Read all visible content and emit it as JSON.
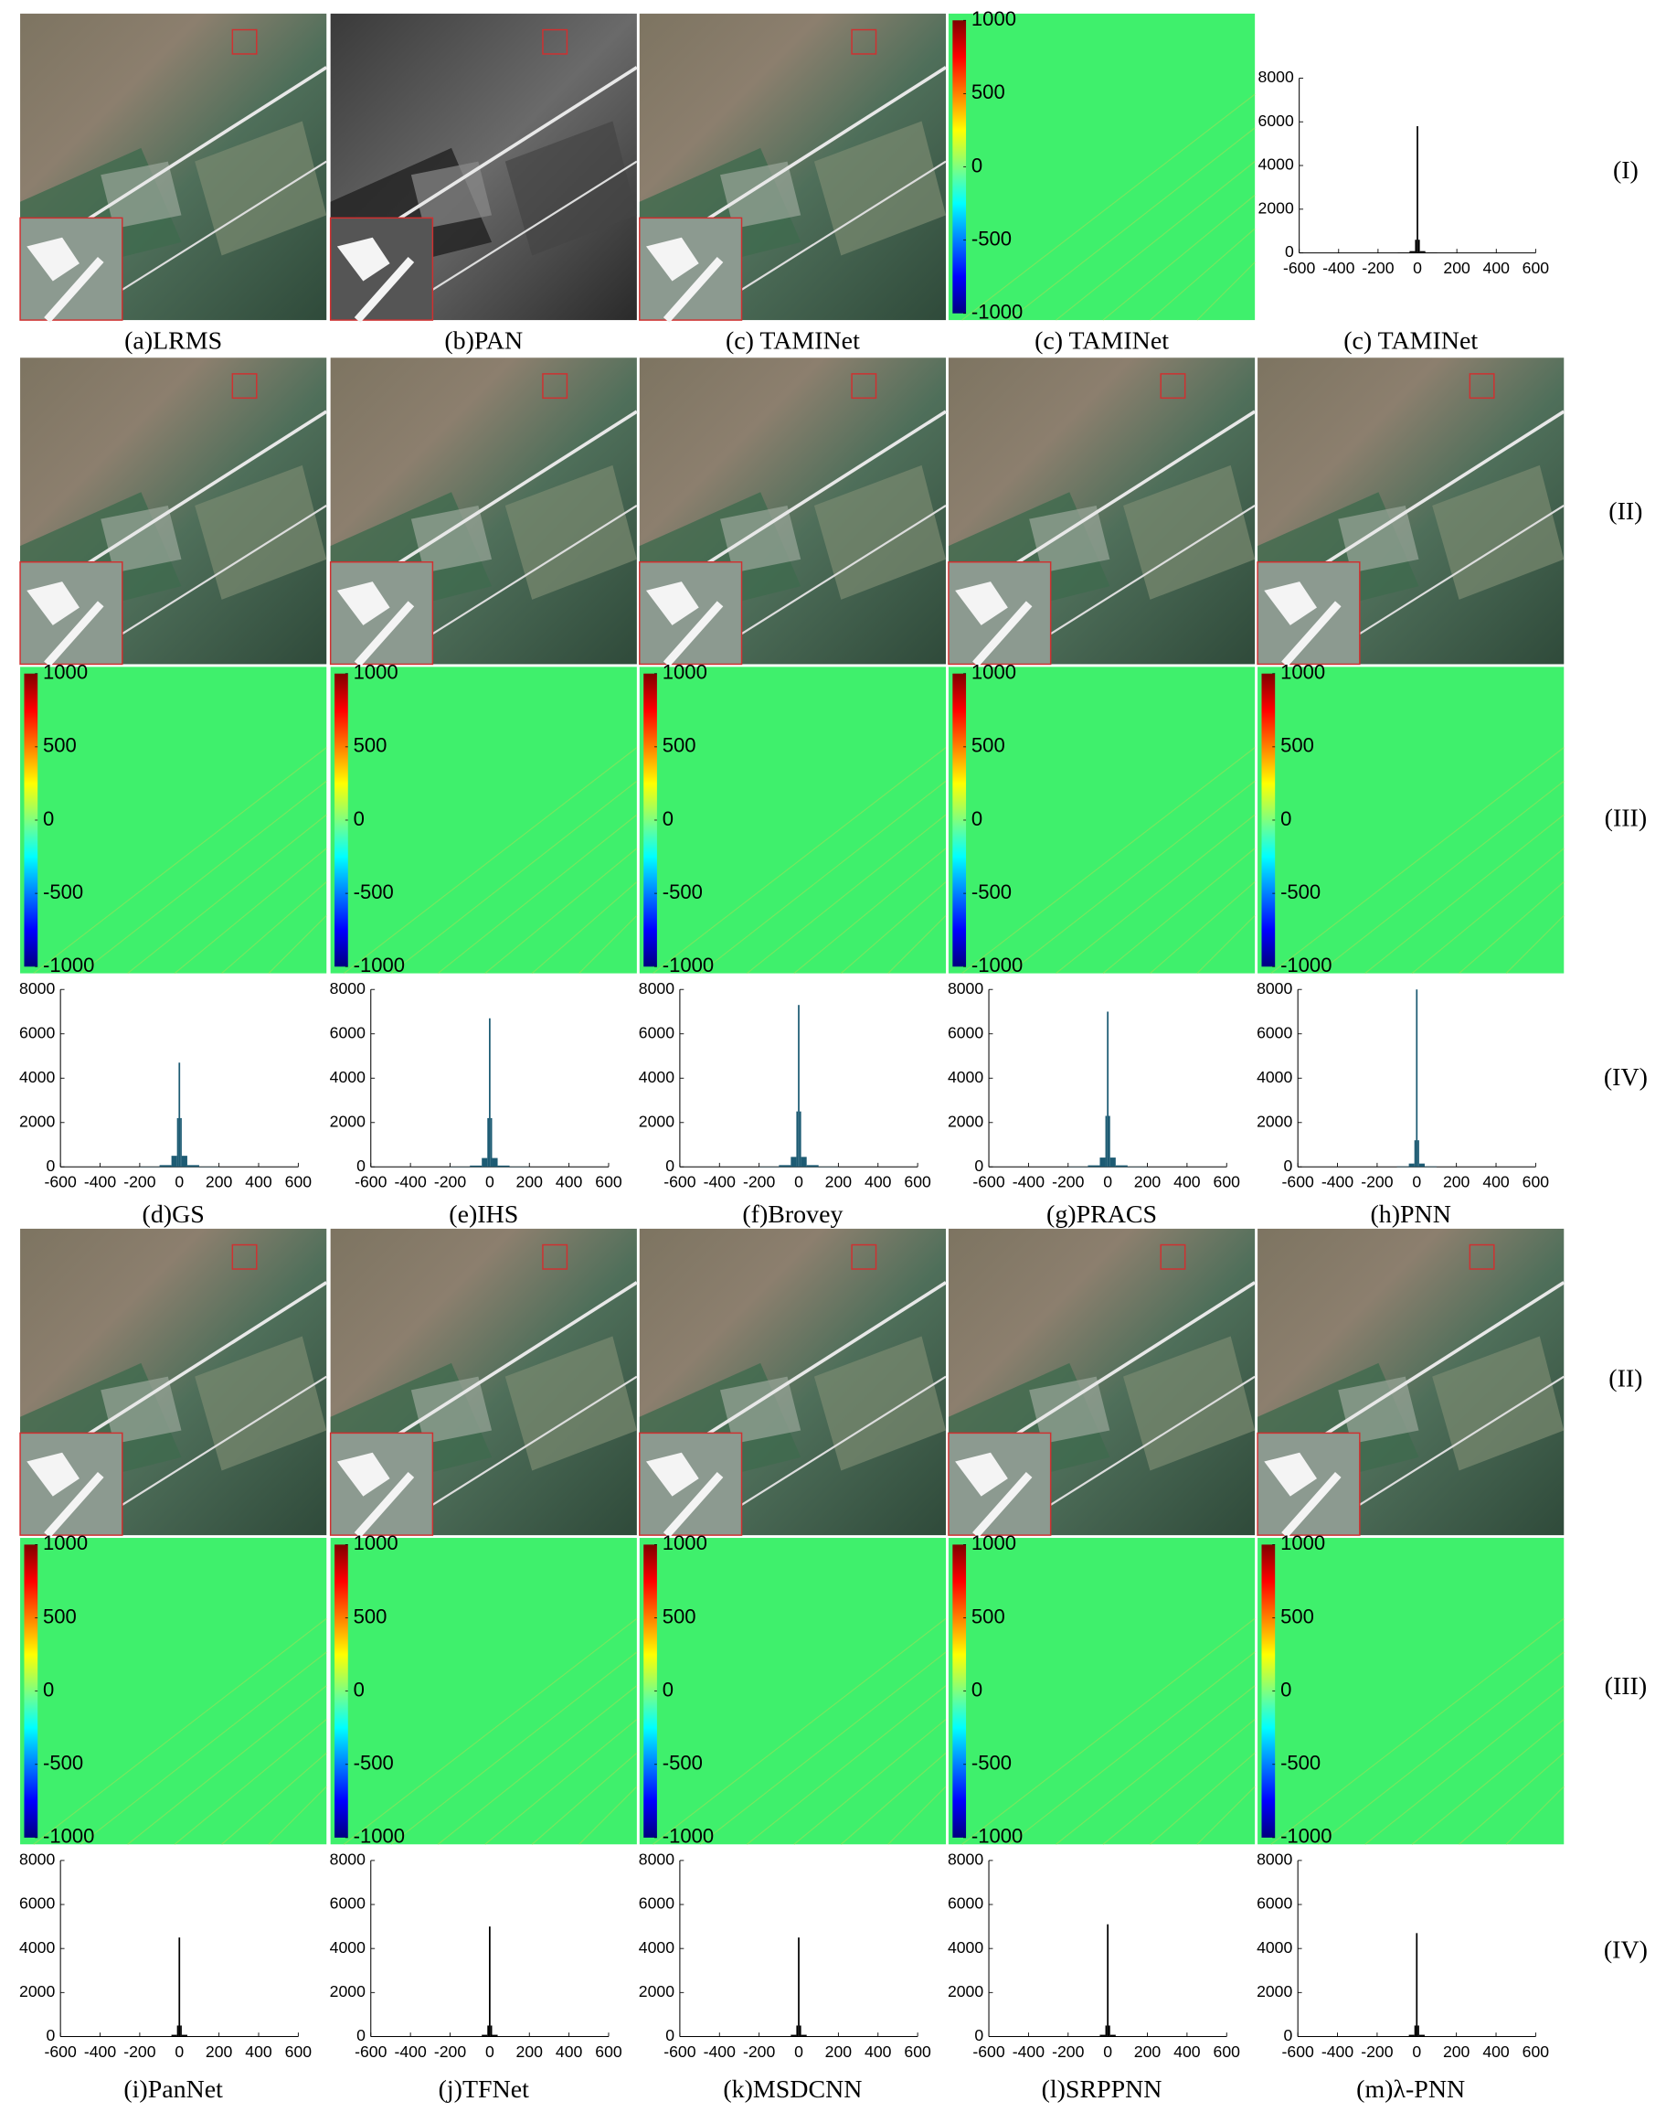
{
  "captions": [
    "(a)LRMS",
    "(b)PAN",
    "(c) TAMINet",
    "(c) TAMINet",
    "(c) TAMINet",
    "(d)GS",
    "(e)IHS",
    "(f)Brovey",
    "(g)PRACS",
    "(h)PNN",
    "(i)PanNet",
    "(j)TFNet",
    "(k)MSDCNN",
    "(l)SRPPNN",
    "(m)λ-PNN"
  ],
  "row_labels": [
    "(I)",
    "(II)",
    "(III)",
    "(IV)",
    "(II)",
    "(III)",
    "(IV)"
  ],
  "colorbar": {
    "lim": [
      -1000,
      1000
    ],
    "ticks": [
      1000,
      500,
      0,
      -500,
      -1000
    ]
  },
  "chart_data": [
    {
      "type": "histogram",
      "color": "#000000",
      "bins": [
        -200,
        -100,
        -40,
        -12,
        -4,
        4,
        12,
        40,
        100,
        200
      ],
      "counts": [
        0,
        10,
        80,
        600,
        5800,
        600,
        80,
        10,
        0
      ],
      "xlim": [
        -600,
        600
      ],
      "ylim": [
        0,
        8000
      ],
      "xticks": [
        -600,
        -400,
        -200,
        0,
        200,
        400,
        600
      ],
      "yticks": [
        0,
        2000,
        4000,
        6000,
        8000
      ]
    },
    {
      "type": "histogram",
      "color": "#1d5b73",
      "bins": [
        -200,
        -100,
        -40,
        -12,
        -4,
        4,
        12,
        40,
        100,
        200
      ],
      "counts": [
        10,
        80,
        500,
        2200,
        4700,
        2200,
        500,
        80,
        10
      ],
      "xlim": [
        -600,
        600
      ],
      "ylim": [
        0,
        8000
      ],
      "xticks": [
        -600,
        -400,
        -200,
        0,
        200,
        400,
        600
      ],
      "yticks": [
        0,
        2000,
        4000,
        6000,
        8000
      ]
    },
    {
      "type": "histogram",
      "color": "#1d5b73",
      "bins": [
        -200,
        -100,
        -40,
        -12,
        -4,
        4,
        12,
        40,
        100,
        200
      ],
      "counts": [
        10,
        60,
        400,
        2200,
        6700,
        2200,
        400,
        60,
        10
      ],
      "xlim": [
        -600,
        600
      ],
      "ylim": [
        0,
        8000
      ],
      "xticks": [
        -600,
        -400,
        -200,
        0,
        200,
        400,
        600
      ],
      "yticks": [
        0,
        2000,
        4000,
        6000,
        8000
      ]
    },
    {
      "type": "histogram",
      "color": "#1d5b73",
      "bins": [
        -200,
        -100,
        -40,
        -12,
        -4,
        4,
        12,
        40,
        100,
        200
      ],
      "counts": [
        10,
        80,
        450,
        2500,
        7300,
        2500,
        450,
        80,
        10
      ],
      "xlim": [
        -600,
        600
      ],
      "ylim": [
        0,
        8000
      ],
      "xticks": [
        -600,
        -400,
        -200,
        0,
        200,
        400,
        600
      ],
      "yticks": [
        0,
        2000,
        4000,
        6000,
        8000
      ]
    },
    {
      "type": "histogram",
      "color": "#1d5b73",
      "bins": [
        -200,
        -100,
        -40,
        -12,
        -4,
        4,
        12,
        40,
        100,
        200
      ],
      "counts": [
        10,
        70,
        420,
        2300,
        7000,
        2300,
        420,
        70,
        10
      ],
      "xlim": [
        -600,
        600
      ],
      "ylim": [
        0,
        8000
      ],
      "xticks": [
        -600,
        -400,
        -200,
        0,
        200,
        400,
        600
      ],
      "yticks": [
        0,
        2000,
        4000,
        6000,
        8000
      ]
    },
    {
      "type": "histogram",
      "color": "#1d5b73",
      "bins": [
        -200,
        -100,
        -40,
        -12,
        -4,
        4,
        12,
        40,
        100,
        200
      ],
      "counts": [
        0,
        20,
        150,
        1200,
        8000,
        1200,
        150,
        20,
        0
      ],
      "xlim": [
        -600,
        600
      ],
      "ylim": [
        0,
        8000
      ],
      "xticks": [
        -600,
        -400,
        -200,
        0,
        200,
        400,
        600
      ],
      "yticks": [
        0,
        2000,
        4000,
        6000,
        8000
      ]
    },
    {
      "type": "histogram",
      "color": "#000000",
      "bins": [
        -200,
        -100,
        -40,
        -12,
        -4,
        4,
        12,
        40,
        100,
        200
      ],
      "counts": [
        0,
        10,
        80,
        500,
        4500,
        500,
        80,
        10,
        0
      ],
      "xlim": [
        -600,
        600
      ],
      "ylim": [
        0,
        8000
      ],
      "xticks": [
        -600,
        -400,
        -200,
        0,
        200,
        400,
        600
      ],
      "yticks": [
        0,
        2000,
        4000,
        6000,
        8000
      ]
    },
    {
      "type": "histogram",
      "color": "#000000",
      "bins": [
        -200,
        -100,
        -40,
        -12,
        -4,
        4,
        12,
        40,
        100,
        200
      ],
      "counts": [
        0,
        10,
        80,
        500,
        5000,
        500,
        80,
        10,
        0
      ],
      "xlim": [
        -600,
        600
      ],
      "ylim": [
        0,
        8000
      ],
      "xticks": [
        -600,
        -400,
        -200,
        0,
        200,
        400,
        600
      ],
      "yticks": [
        0,
        2000,
        4000,
        6000,
        8000
      ]
    },
    {
      "type": "histogram",
      "color": "#000000",
      "bins": [
        -200,
        -100,
        -40,
        -12,
        -4,
        4,
        12,
        40,
        100,
        200
      ],
      "counts": [
        0,
        10,
        80,
        500,
        4500,
        500,
        80,
        10,
        0
      ],
      "xlim": [
        -600,
        600
      ],
      "ylim": [
        0,
        8000
      ],
      "xticks": [
        -600,
        -400,
        -200,
        0,
        200,
        400,
        600
      ],
      "yticks": [
        0,
        2000,
        4000,
        6000,
        8000
      ]
    },
    {
      "type": "histogram",
      "color": "#000000",
      "bins": [
        -200,
        -100,
        -40,
        -12,
        -4,
        4,
        12,
        40,
        100,
        200
      ],
      "counts": [
        0,
        10,
        80,
        500,
        5100,
        500,
        80,
        10,
        0
      ],
      "xlim": [
        -600,
        600
      ],
      "ylim": [
        0,
        8000
      ],
      "xticks": [
        -600,
        -400,
        -200,
        0,
        200,
        400,
        600
      ],
      "yticks": [
        0,
        2000,
        4000,
        6000,
        8000
      ]
    },
    {
      "type": "histogram",
      "color": "#000000",
      "bins": [
        -200,
        -100,
        -40,
        -12,
        -4,
        4,
        12,
        40,
        100,
        200
      ],
      "counts": [
        0,
        10,
        80,
        500,
        4700,
        500,
        80,
        10,
        0
      ],
      "xlim": [
        -600,
        600
      ],
      "ylim": [
        0,
        8000
      ],
      "xticks": [
        -600,
        -400,
        -200,
        0,
        200,
        400,
        600
      ],
      "yticks": [
        0,
        2000,
        4000,
        6000,
        8000
      ]
    }
  ]
}
